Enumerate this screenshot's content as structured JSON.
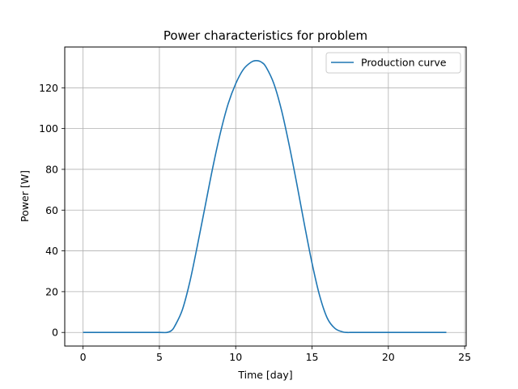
{
  "chart_data": {
    "type": "line",
    "title": "Power characteristics for problem",
    "xlabel": "Time [day]",
    "ylabel": "Power [W]",
    "xlim": [
      -1.2,
      25.1
    ],
    "ylim": [
      -6.67,
      140
    ],
    "xticks": [
      0,
      5,
      10,
      15,
      20,
      25
    ],
    "yticks": [
      0,
      20,
      40,
      60,
      80,
      100,
      120
    ],
    "grid": true,
    "legend_position": "top-right",
    "series": [
      {
        "name": "Production curve",
        "color": "#1f77b4",
        "x": [
          0,
          1,
          2,
          3,
          4,
          5,
          5.5,
          5.8,
          6,
          6.5,
          7,
          7.5,
          8,
          8.5,
          9,
          9.5,
          10,
          10.5,
          11,
          11.35,
          11.7,
          12,
          12.5,
          13,
          13.5,
          14,
          14.5,
          15,
          15.5,
          16,
          16.5,
          17,
          17.3,
          17.5,
          18,
          19,
          20,
          21,
          22,
          23,
          23.8
        ],
        "y": [
          0,
          0,
          0,
          0,
          0,
          0,
          0,
          1,
          3,
          11,
          25,
          43,
          62,
          81,
          98,
          112,
          122,
          129,
          132.5,
          133.3,
          132.5,
          130,
          122,
          109,
          92,
          73,
          53,
          34,
          18,
          7,
          2,
          0.3,
          0,
          0,
          0,
          0,
          0,
          0,
          0,
          0,
          0
        ]
      }
    ]
  }
}
